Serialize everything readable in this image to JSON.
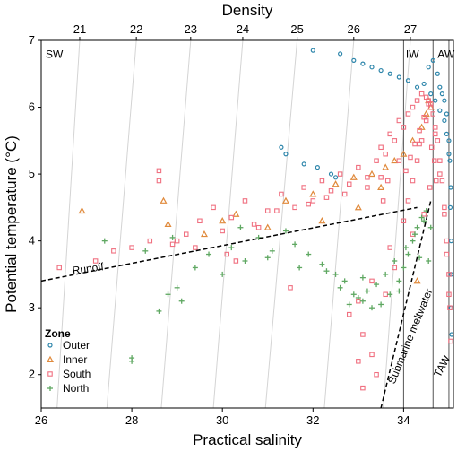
{
  "chart_data": {
    "type": "scatter",
    "title": "",
    "xlabel": "Practical salinity",
    "ylabel": "Potential temperature (°C)",
    "x2label": "Density",
    "xlim": [
      26,
      35.1
    ],
    "ylim": [
      1.5,
      7
    ],
    "x_ticks": [
      "26",
      "28",
      "30",
      "32",
      "34"
    ],
    "y_ticks": [
      "2",
      "3",
      "4",
      "5",
      "6",
      "7"
    ],
    "density_ticks": [
      "21",
      "22",
      "23",
      "24",
      "25",
      "26",
      "27"
    ],
    "density_lines": [
      {
        "label": "21",
        "top": 26.85,
        "bottom": 26.35
      },
      {
        "label": "22",
        "top": 28.1,
        "bottom": 27.45
      },
      {
        "label": "23",
        "top": 29.3,
        "bottom": 28.65
      },
      {
        "label": "24",
        "top": 30.45,
        "bottom": 29.8
      },
      {
        "label": "25",
        "top": 31.65,
        "bottom": 30.95
      },
      {
        "label": "26",
        "top": 32.9,
        "bottom": 32.25
      },
      {
        "label": "27",
        "top": 34.15,
        "bottom": 33.55
      }
    ],
    "water_masses": [
      {
        "label": "SW",
        "s": 26.1,
        "t": 6.9
      },
      {
        "label": "IW",
        "s": 34.05,
        "t": 6.9
      },
      {
        "label": "AW",
        "s": 34.75,
        "t": 6.9
      }
    ],
    "boundaries": [
      34.0,
      34.65,
      35.0
    ],
    "mixing_lines": [
      {
        "label": "Runoff",
        "from": [
          26,
          3.4
        ],
        "to": [
          34.3,
          4.5
        ],
        "label_at": [
          26.7,
          3.5
        ],
        "angle": -8
      },
      {
        "label": "Submarine meltwater",
        "from": [
          33.5,
          1.5
        ],
        "to": [
          34.6,
          4.6
        ],
        "label_at": [
          33.8,
          1.85
        ],
        "angle": -68
      },
      {
        "label": "TAW",
        "from": [
          35.05,
          2.6
        ],
        "to": [
          35.05,
          2.6
        ],
        "label_at": [
          34.8,
          1.95
        ],
        "angle": -62
      }
    ],
    "legend": {
      "title": "Zone",
      "position": "bottom-left",
      "entries": [
        {
          "name": "Outer",
          "color": "#2e86ab",
          "marker": "circle"
        },
        {
          "name": "Inner",
          "color": "#e08a3c",
          "marker": "triangle"
        },
        {
          "name": "South",
          "color": "#f07080",
          "marker": "square"
        },
        {
          "name": "North",
          "color": "#5fa862",
          "marker": "plus"
        }
      ]
    },
    "series": [
      {
        "name": "Outer",
        "x": [
          32.0,
          32.6,
          32.9,
          33.1,
          33.3,
          33.5,
          33.7,
          33.9,
          34.1,
          34.3,
          34.45,
          34.55,
          34.65,
          34.75,
          34.8,
          34.85,
          34.9,
          34.95,
          35.0,
          35.02,
          35.04,
          31.3,
          31.4,
          31.8,
          32.1,
          32.4,
          32.5,
          34.6,
          34.7,
          34.8,
          34.9,
          34.95,
          35.0,
          35.03,
          35.05,
          35.05,
          35.05,
          35.06
        ],
        "y": [
          6.85,
          6.8,
          6.7,
          6.65,
          6.6,
          6.55,
          6.5,
          6.45,
          6.4,
          6.3,
          6.35,
          6.6,
          6.7,
          6.5,
          6.3,
          6.2,
          6.1,
          5.9,
          5.5,
          5.2,
          4.8,
          5.4,
          5.3,
          5.15,
          5.1,
          5.0,
          4.95,
          6.2,
          6.1,
          5.95,
          5.8,
          5.6,
          5.3,
          4.5,
          4.0,
          3.5,
          3.0,
          2.6
        ]
      },
      {
        "name": "Inner",
        "x": [
          26.9,
          28.7,
          28.8,
          29.6,
          30.0,
          30.3,
          31.0,
          31.4,
          32.0,
          32.5,
          32.9,
          33.3,
          33.6,
          33.8,
          34.0,
          34.2,
          34.4,
          34.5,
          34.55,
          34.6,
          32.2,
          33.0,
          33.5,
          34.3
        ],
        "y": [
          4.45,
          4.6,
          4.25,
          4.1,
          4.3,
          4.4,
          4.2,
          4.6,
          4.7,
          4.85,
          4.95,
          5.0,
          5.1,
          5.2,
          5.3,
          5.5,
          5.7,
          5.9,
          6.1,
          6.0,
          4.3,
          4.5,
          4.8,
          3.4
        ]
      },
      {
        "name": "South",
        "x": [
          26.4,
          27.2,
          27.6,
          28.0,
          28.4,
          28.6,
          28.9,
          29.2,
          29.5,
          29.8,
          30.0,
          30.2,
          30.5,
          30.8,
          31.0,
          31.3,
          31.6,
          31.8,
          32.0,
          32.2,
          32.4,
          32.6,
          32.8,
          33.0,
          33.2,
          33.4,
          33.5,
          33.6,
          33.7,
          33.8,
          33.9,
          34.0,
          34.1,
          34.2,
          34.3,
          34.4,
          34.5,
          34.55,
          34.6,
          34.65,
          34.7,
          34.75,
          34.8,
          34.85,
          34.9,
          34.95,
          35.0,
          35.02,
          35.04,
          28.6,
          30.3,
          31.5,
          33.1,
          33.3,
          33.4,
          33.6,
          33.8,
          34.0,
          34.1,
          34.2,
          34.3,
          34.4,
          34.5,
          34.6,
          34.7,
          34.8,
          34.9,
          34.95,
          35.0,
          32.8,
          33.0,
          33.3,
          33.7,
          34.2,
          34.45,
          34.58,
          34.62,
          34.68,
          34.72,
          29.0,
          29.4,
          30.1,
          30.7,
          31.2,
          31.9,
          32.3,
          32.7,
          33.2,
          33.5,
          33.9,
          34.35,
          33.0,
          33.1,
          34.05,
          34.15,
          34.25,
          34.35,
          34.45,
          34.55,
          33.55,
          33.65
        ],
        "y": [
          3.6,
          3.7,
          3.85,
          3.9,
          4.0,
          5.05,
          3.95,
          4.1,
          4.3,
          4.5,
          4.15,
          4.35,
          4.6,
          4.2,
          4.45,
          4.7,
          4.5,
          4.8,
          4.6,
          4.9,
          4.75,
          5.0,
          4.85,
          5.1,
          4.95,
          5.2,
          5.4,
          5.3,
          5.6,
          5.5,
          5.8,
          5.7,
          5.9,
          6.0,
          6.1,
          6.2,
          6.15,
          6.1,
          6.0,
          5.9,
          5.7,
          5.5,
          5.2,
          4.9,
          4.5,
          4.0,
          3.5,
          3.0,
          2.5,
          4.9,
          3.7,
          3.3,
          2.6,
          2.3,
          2.0,
          3.2,
          3.6,
          4.3,
          4.6,
          4.9,
          5.2,
          5.5,
          5.8,
          6.05,
          5.6,
          5.0,
          4.4,
          3.8,
          3.2,
          2.9,
          3.1,
          3.4,
          3.9,
          4.1,
          4.4,
          4.8,
          5.4,
          5.2,
          4.9,
          4.0,
          3.9,
          3.8,
          4.25,
          4.45,
          4.55,
          4.65,
          4.7,
          4.8,
          4.95,
          5.2,
          5.45,
          2.2,
          1.8,
          5.05,
          5.25,
          5.45,
          5.65,
          5.85,
          6.05,
          4.6,
          4.9
        ]
      },
      {
        "name": "North",
        "x": [
          27.4,
          28.0,
          28.3,
          28.6,
          28.8,
          29.1,
          29.4,
          29.7,
          30.0,
          30.2,
          30.5,
          30.8,
          31.1,
          31.4,
          31.6,
          31.9,
          32.2,
          32.5,
          32.7,
          32.9,
          33.1,
          33.3,
          33.5,
          33.7,
          33.9,
          34.0,
          34.1,
          34.2,
          34.3,
          34.4,
          34.5,
          34.6,
          28.9,
          29.0,
          30.4,
          31.0,
          31.7,
          32.3,
          32.6,
          33.0,
          33.2,
          33.4,
          33.6,
          33.8,
          34.05,
          34.25,
          34.45,
          34.55,
          28.0,
          32.8,
          33.1,
          33.9,
          34.35
        ],
        "y": [
          4.0,
          2.25,
          3.85,
          2.95,
          3.2,
          3.1,
          3.6,
          3.8,
          3.5,
          3.9,
          3.7,
          4.05,
          3.85,
          4.15,
          3.95,
          3.8,
          3.65,
          3.5,
          3.4,
          3.2,
          3.1,
          3.0,
          3.05,
          3.2,
          3.4,
          3.6,
          3.8,
          4.0,
          4.2,
          4.35,
          4.45,
          4.2,
          4.05,
          3.3,
          4.2,
          3.75,
          3.6,
          3.55,
          3.3,
          3.15,
          3.25,
          3.35,
          3.5,
          3.7,
          3.9,
          4.1,
          4.3,
          3.7,
          2.2,
          3.05,
          3.45,
          3.25,
          3.75
        ]
      }
    ]
  }
}
